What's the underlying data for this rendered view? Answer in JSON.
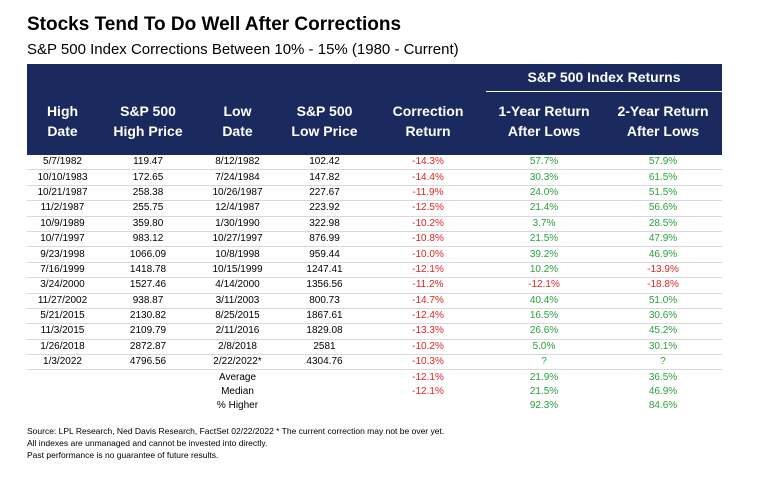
{
  "title": "Stocks Tend To Do Well After Corrections",
  "subtitle": "S&P 500 Index Corrections Between 10% - 15% (1980 - Current)",
  "group_header": "S&P 500 Index Returns",
  "columns": [
    {
      "line1": "High",
      "line2": "Date"
    },
    {
      "line1": "S&P 500",
      "line2": "High Price"
    },
    {
      "line1": "Low",
      "line2": "Date"
    },
    {
      "line1": "S&P 500",
      "line2": "Low Price"
    },
    {
      "line1": "Correction",
      "line2": "Return"
    },
    {
      "line1": "1-Year Return",
      "line2": "After Lows"
    },
    {
      "line1": "2-Year Return",
      "line2": "After Lows"
    }
  ],
  "rows": [
    {
      "high_date": "5/7/1982",
      "high_price": "119.47",
      "low_date": "8/12/1982",
      "low_price": "102.42",
      "correction": "-14.3%",
      "ret_1y": "57.7%",
      "ret_2y": "57.9%"
    },
    {
      "high_date": "10/10/1983",
      "high_price": "172.65",
      "low_date": "7/24/1984",
      "low_price": "147.82",
      "correction": "-14.4%",
      "ret_1y": "30.3%",
      "ret_2y": "61.5%"
    },
    {
      "high_date": "10/21/1987",
      "high_price": "258.38",
      "low_date": "10/26/1987",
      "low_price": "227.67",
      "correction": "-11.9%",
      "ret_1y": "24.0%",
      "ret_2y": "51.5%"
    },
    {
      "high_date": "11/2/1987",
      "high_price": "255.75",
      "low_date": "12/4/1987",
      "low_price": "223.92",
      "correction": "-12.5%",
      "ret_1y": "21.4%",
      "ret_2y": "56.6%"
    },
    {
      "high_date": "10/9/1989",
      "high_price": "359.80",
      "low_date": "1/30/1990",
      "low_price": "322.98",
      "correction": "-10.2%",
      "ret_1y": "3.7%",
      "ret_2y": "28.5%"
    },
    {
      "high_date": "10/7/1997",
      "high_price": "983.12",
      "low_date": "10/27/1997",
      "low_price": "876.99",
      "correction": "-10.8%",
      "ret_1y": "21.5%",
      "ret_2y": "47.9%"
    },
    {
      "high_date": "9/23/1998",
      "high_price": "1066.09",
      "low_date": "10/8/1998",
      "low_price": "959.44",
      "correction": "-10.0%",
      "ret_1y": "39.2%",
      "ret_2y": "46.9%"
    },
    {
      "high_date": "7/16/1999",
      "high_price": "1418.78",
      "low_date": "10/15/1999",
      "low_price": "1247.41",
      "correction": "-12.1%",
      "ret_1y": "10.2%",
      "ret_2y": "-13.9%"
    },
    {
      "high_date": "3/24/2000",
      "high_price": "1527.46",
      "low_date": "4/14/2000",
      "low_price": "1356.56",
      "correction": "-11.2%",
      "ret_1y": "-12.1%",
      "ret_2y": "-18.8%"
    },
    {
      "high_date": "11/27/2002",
      "high_price": "938.87",
      "low_date": "3/11/2003",
      "low_price": "800.73",
      "correction": "-14.7%",
      "ret_1y": "40.4%",
      "ret_2y": "51.0%"
    },
    {
      "high_date": "5/21/2015",
      "high_price": "2130.82",
      "low_date": "8/25/2015",
      "low_price": "1867.61",
      "correction": "-12.4%",
      "ret_1y": "16.5%",
      "ret_2y": "30.6%"
    },
    {
      "high_date": "11/3/2015",
      "high_price": "2109.79",
      "low_date": "2/11/2016",
      "low_price": "1829.08",
      "correction": "-13.3%",
      "ret_1y": "26.6%",
      "ret_2y": "45.2%"
    },
    {
      "high_date": "1/26/2018",
      "high_price": "2872.87",
      "low_date": "2/8/2018",
      "low_price": "2581",
      "correction": "-10.2%",
      "ret_1y": "5.0%",
      "ret_2y": "30.1%"
    },
    {
      "high_date": "1/3/2022",
      "high_price": "4796.56",
      "low_date": "2/22/2022*",
      "low_price": "4304.76",
      "correction": "-10.3%",
      "ret_1y": "?",
      "ret_2y": "?"
    }
  ],
  "summary": [
    {
      "label": "Average",
      "correction": "-12.1%",
      "ret_1y": "21.9%",
      "ret_2y": "36.5%"
    },
    {
      "label": "Median",
      "correction": "-12.1%",
      "ret_1y": "21.5%",
      "ret_2y": "46.9%"
    },
    {
      "label": "% Higher",
      "correction": "",
      "ret_1y": "92.3%",
      "ret_2y": "84.6%"
    }
  ],
  "notes": [
    "Source: LPL Research, Ned Davis Research, FactSet 02/22/2022  * The current correction may not be over yet.",
    "All indexes are unmanaged and cannot be invested into directly.",
    "Past performance is no guarantee of future results."
  ],
  "colors": {
    "header_bg": "#1b2a5e",
    "negative": "#e0241f",
    "positive": "#2aa13b"
  }
}
